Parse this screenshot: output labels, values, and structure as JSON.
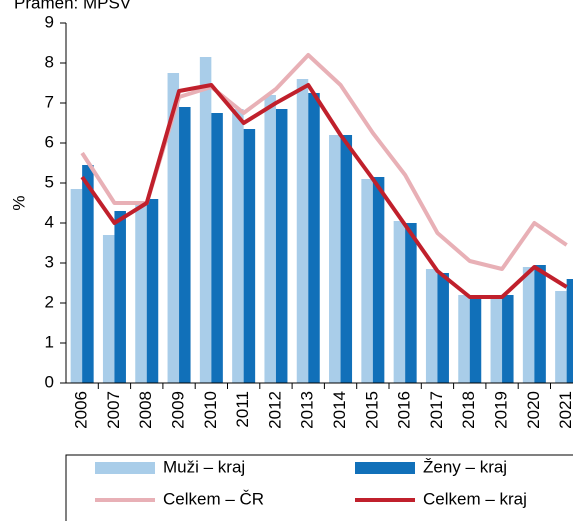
{
  "chart_data": {
    "type": "bar_line",
    "source": "Pramen: MPSV",
    "y_label": "%",
    "categories": [
      "2006",
      "2007",
      "2008",
      "2009",
      "2010",
      "2011",
      "2012",
      "2013",
      "2014",
      "2015",
      "2016",
      "2017",
      "2018",
      "2019",
      "2020",
      "2021"
    ],
    "series": [
      {
        "name": "Muži – kraj",
        "kind": "bar",
        "color": "#a9cde9",
        "values": [
          4.85,
          3.7,
          4.5,
          7.75,
          8.15,
          6.85,
          7.2,
          7.6,
          6.2,
          5.1,
          4.05,
          2.85,
          2.2,
          2.2,
          2.9,
          2.3
        ]
      },
      {
        "name": "Ženy – kraj",
        "kind": "bar",
        "color": "#1170b9",
        "values": [
          5.45,
          4.3,
          4.6,
          6.9,
          6.75,
          6.35,
          6.85,
          7.25,
          6.2,
          5.15,
          4.0,
          2.75,
          2.2,
          2.2,
          2.95,
          2.6
        ]
      },
      {
        "name": "Celkem – ČR",
        "kind": "line",
        "color": "#e8b0b6",
        "values": [
          5.75,
          4.5,
          4.5,
          7.15,
          7.4,
          6.75,
          7.35,
          8.2,
          7.45,
          6.25,
          5.2,
          3.75,
          3.05,
          2.85,
          4.0,
          3.45
        ]
      },
      {
        "name": "Celkem – kraj",
        "kind": "line",
        "color": "#c0202c",
        "values": [
          5.15,
          4.0,
          4.5,
          7.3,
          7.45,
          6.5,
          7.0,
          7.45,
          6.2,
          5.1,
          3.95,
          2.8,
          2.15,
          2.15,
          2.9,
          2.4
        ]
      }
    ],
    "ylim": [
      0,
      9
    ],
    "yticks": [
      0,
      1,
      2,
      3,
      4,
      5,
      6,
      7,
      8,
      9
    ]
  }
}
